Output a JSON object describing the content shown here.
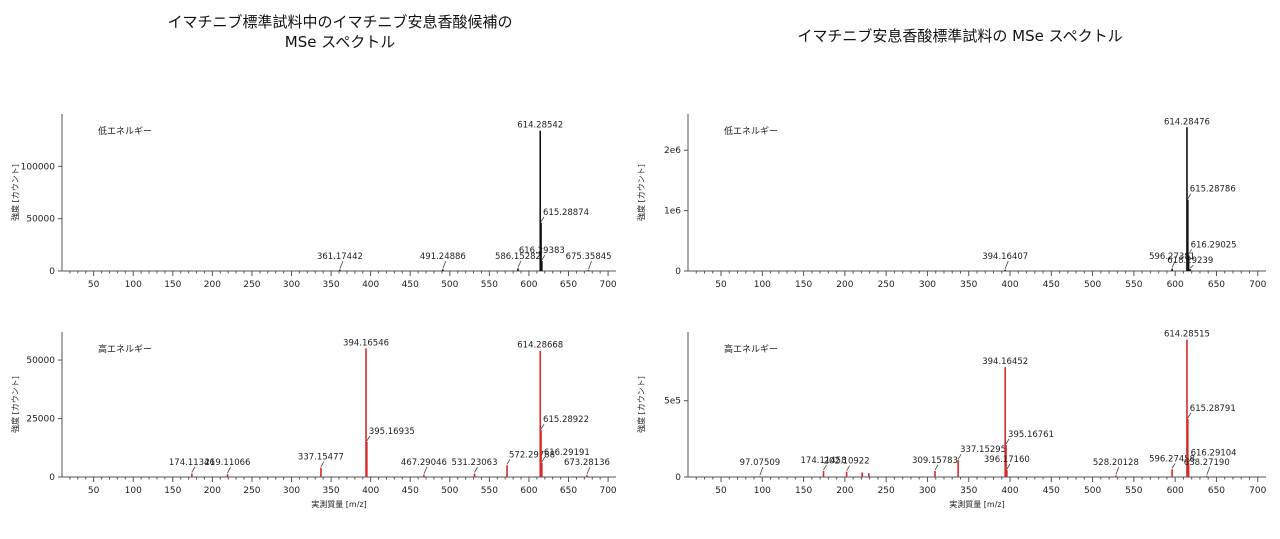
{
  "panels": {
    "left_title": "イマチニブ標準試料中のイマチニブ安息香酸候補の\nMSe スペクトル",
    "right_title": "イマチニブ安息香酸標準試料の MSe スペクトル"
  },
  "chart_data": [
    {
      "type": "bar",
      "panel": "left",
      "label": "低エネルギー",
      "color": "#111111",
      "ylabel": "強度 [カウント]",
      "xlabel": "",
      "xlim": [
        10,
        710
      ],
      "ylim": [
        0,
        150000
      ],
      "xticks": [
        50,
        100,
        150,
        200,
        250,
        300,
        350,
        400,
        450,
        500,
        550,
        600,
        650,
        700
      ],
      "yticks": [
        0,
        50000,
        100000
      ],
      "ytick_labels": [
        "0",
        "50000",
        "100000"
      ],
      "peaks": [
        {
          "x": 361.17442,
          "y": 1200,
          "label": "361.17442"
        },
        {
          "x": 491.24886,
          "y": 1500,
          "label": "491.24886"
        },
        {
          "x": 586.15282,
          "y": 2500,
          "label": "586.15282"
        },
        {
          "x": 614.28542,
          "y": 134000,
          "label": "614.28542"
        },
        {
          "x": 615.28874,
          "y": 46000,
          "label": "615.28874"
        },
        {
          "x": 616.29383,
          "y": 9500,
          "label": "616.29383"
        },
        {
          "x": 675.35845,
          "y": 800,
          "label": "675.35845"
        }
      ]
    },
    {
      "type": "bar",
      "panel": "left",
      "label": "高エネルギー",
      "color": "#d42a2a",
      "ylabel": "強度 [カウント]",
      "xlabel": "実測質量 [m/z]",
      "xlim": [
        10,
        710
      ],
      "ylim": [
        0,
        62000
      ],
      "xticks": [
        50,
        100,
        150,
        200,
        250,
        300,
        350,
        400,
        450,
        500,
        550,
        600,
        650,
        700
      ],
      "yticks": [
        0,
        25000,
        50000
      ],
      "ytick_labels": [
        "0",
        "25000",
        "50000"
      ],
      "peaks": [
        {
          "x": 174.11346,
          "y": 1500,
          "label": "174.11346"
        },
        {
          "x": 219.11066,
          "y": 1200,
          "label": "219.11066"
        },
        {
          "x": 337.15477,
          "y": 4000,
          "label": "337.15477"
        },
        {
          "x": 394.16546,
          "y": 55000,
          "label": "394.16546"
        },
        {
          "x": 395.16935,
          "y": 15000,
          "label": "395.16935"
        },
        {
          "x": 467.29046,
          "y": 1000,
          "label": "467.29046"
        },
        {
          "x": 531.23063,
          "y": 1500,
          "label": "531.23063"
        },
        {
          "x": 572.29788,
          "y": 5000,
          "label": "572.29788"
        },
        {
          "x": 614.28668,
          "y": 54000,
          "label": "614.28668"
        },
        {
          "x": 615.28922,
          "y": 20000,
          "label": "615.28922"
        },
        {
          "x": 616.29191,
          "y": 6000,
          "label": "616.29191"
        },
        {
          "x": 673.28136,
          "y": 800,
          "label": "673.28136"
        }
      ]
    },
    {
      "type": "bar",
      "panel": "right",
      "label": "低エネルギー",
      "color": "#111111",
      "ylabel": "強度 [カウント]",
      "xlabel": "",
      "xlim": [
        10,
        710
      ],
      "ylim": [
        0,
        2600000
      ],
      "xticks": [
        50,
        100,
        150,
        200,
        250,
        300,
        350,
        400,
        450,
        500,
        550,
        600,
        650,
        700
      ],
      "yticks": [
        0,
        1000000,
        2000000
      ],
      "ytick_labels": [
        "0",
        "1e6",
        "2e6"
      ],
      "peaks": [
        {
          "x": 394.16407,
          "y": 20000,
          "label": "394.16407"
        },
        {
          "x": 596.27381,
          "y": 40000,
          "label": "596.27381"
        },
        {
          "x": 614.28476,
          "y": 2380000,
          "label": "614.28476"
        },
        {
          "x": 615.28786,
          "y": 1180000,
          "label": "615.28786"
        },
        {
          "x": 616.29025,
          "y": 260000,
          "label": "616.29025"
        },
        {
          "x": 618.29239,
          "y": 30000,
          "label": "618.29239"
        }
      ]
    },
    {
      "type": "bar",
      "panel": "right",
      "label": "高エネルギー",
      "color": "#d42a2a",
      "ylabel": "強度 [カウント]",
      "xlabel": "実測質量 [m/z]",
      "xlim": [
        10,
        710
      ],
      "ylim": [
        0,
        950000
      ],
      "xticks": [
        50,
        100,
        150,
        200,
        250,
        300,
        350,
        400,
        450,
        500,
        550,
        600,
        650,
        700
      ],
      "yticks": [
        0,
        500000
      ],
      "ytick_labels": [
        "0",
        "5e5"
      ],
      "peaks": [
        {
          "x": 97.07509,
          "y": 5000,
          "label": "97.07509"
        },
        {
          "x": 174.11458,
          "y": 40000,
          "label": "174.11458"
        },
        {
          "x": 202.10922,
          "y": 35000,
          "label": "202.10922"
        },
        {
          "x": 221.0,
          "y": 30000,
          "label": ""
        },
        {
          "x": 229.0,
          "y": 25000,
          "label": ""
        },
        {
          "x": 309.15783,
          "y": 40000,
          "label": "309.15783"
        },
        {
          "x": 337.15295,
          "y": 110000,
          "label": "337.15295"
        },
        {
          "x": 394.16452,
          "y": 720000,
          "label": "394.16452"
        },
        {
          "x": 395.16761,
          "y": 210000,
          "label": "395.16761"
        },
        {
          "x": 396.1716,
          "y": 45000,
          "label": "396.17160"
        },
        {
          "x": 528.20128,
          "y": 10000,
          "label": "528.20128"
        },
        {
          "x": 596.27458,
          "y": 50000,
          "label": "596.27458"
        },
        {
          "x": 614.28515,
          "y": 900000,
          "label": "614.28515"
        },
        {
          "x": 615.28791,
          "y": 380000,
          "label": "615.28791"
        },
        {
          "x": 616.29104,
          "y": 90000,
          "label": "616.29104"
        },
        {
          "x": 638.2719,
          "y": 8000,
          "label": "638.27190"
        }
      ]
    }
  ]
}
